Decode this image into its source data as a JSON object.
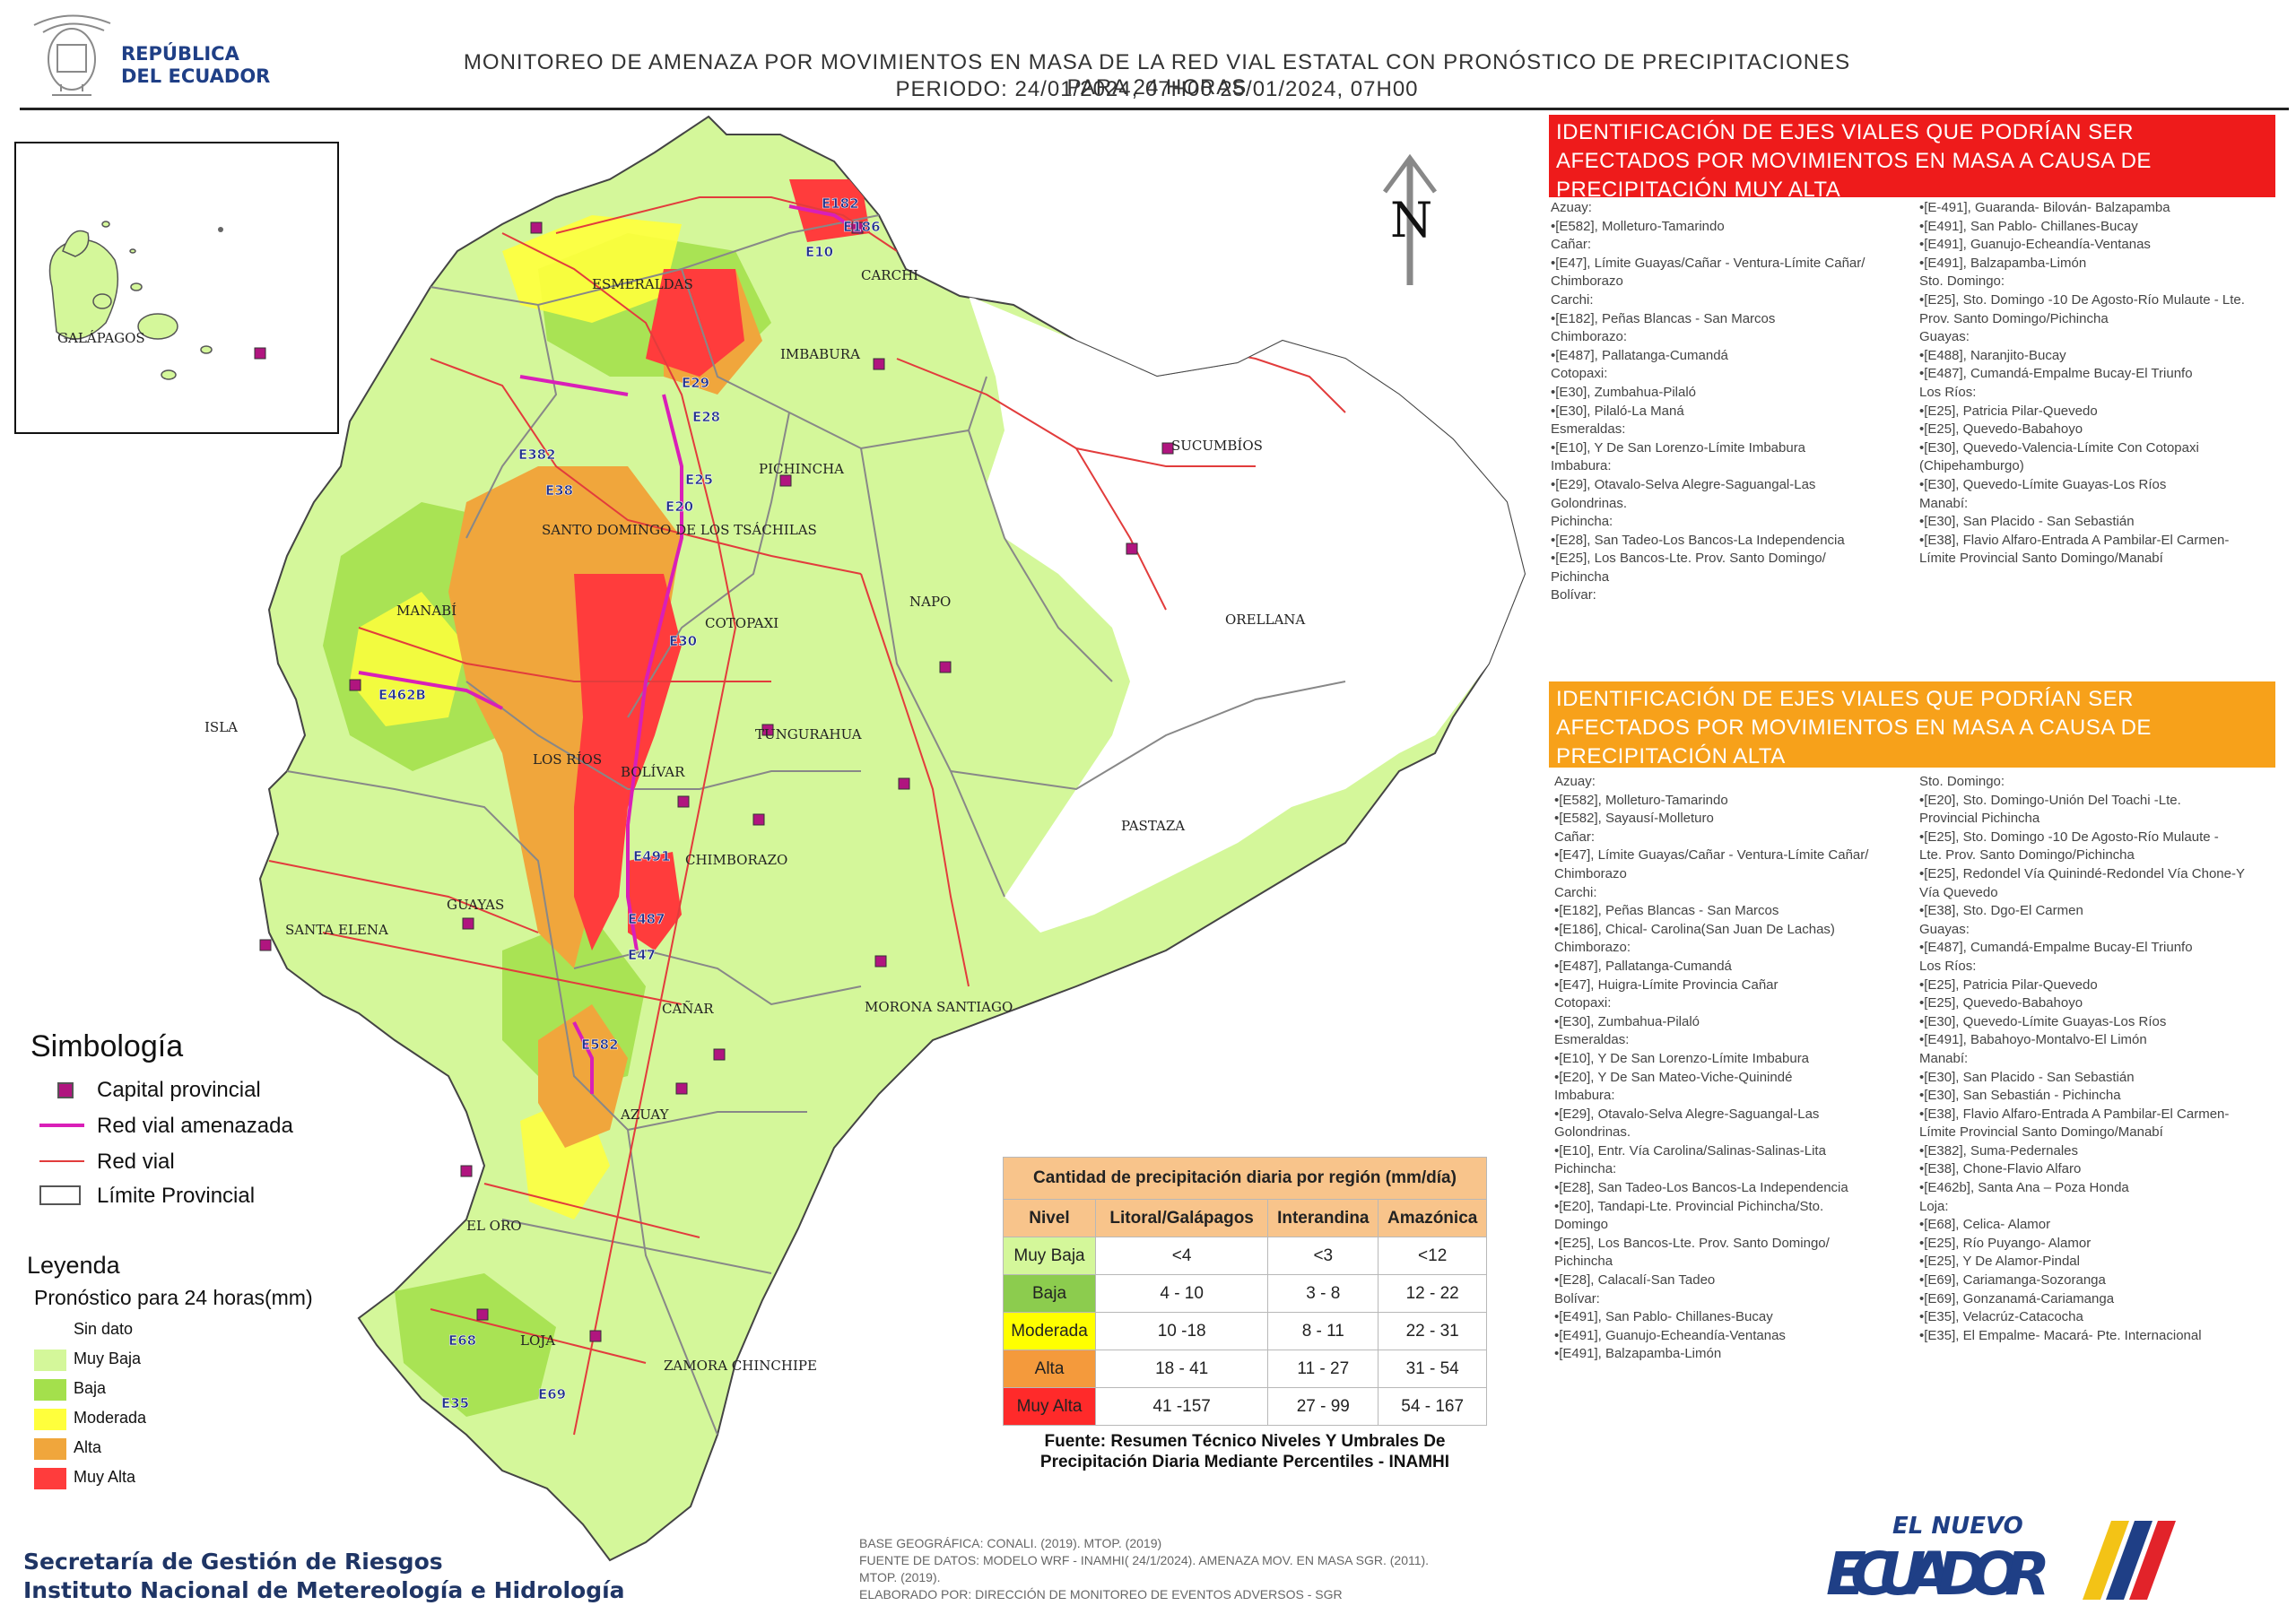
{
  "header": {
    "country_name_line1": "REPÚBLICA",
    "country_name_line2": "DEL ECUADOR",
    "title_line1": "MONITOREO DE AMENAZA POR MOVIMIENTOS EN MASA DE LA RED VIAL  ESTATAL  CON PRONÓSTICO  DE  PRECIPITACIONES PARA 24 HORAS",
    "title_line2": "PERIODO: 24/01/2024, 07H00 25/01/2024, 07H00"
  },
  "map": {
    "north_label": "N",
    "inset_label": "GALÁPAGOS",
    "isla_label": "ISLA",
    "province_labels": [
      "ESMERALDAS",
      "CARCHI",
      "IMBABURA",
      "SUCUMBÍOS",
      "PICHINCHA",
      "SANTO DOMINGO DE LOS TSÁCHILAS",
      "MANABÍ",
      "COTOPAXI",
      "NAPO",
      "ORELLANA",
      "LOS RÍOS",
      "BOLÍVAR",
      "TUNGURAHUA",
      "PASTAZA",
      "CHIMBORAZO",
      "GUAYAS",
      "SANTA ELENA",
      "CAÑAR",
      "MORONA SANTIAGO",
      "AZUAY",
      "EL ORO",
      "LOJA",
      "ZAMORA CHINCHIPE"
    ],
    "road_labels": [
      "E182",
      "E186",
      "E10",
      "E29",
      "E28",
      "E25",
      "E20",
      "E382",
      "E38",
      "E30",
      "E462B",
      "E491",
      "E487",
      "E47",
      "E582",
      "E68",
      "E69",
      "E35"
    ]
  },
  "panel_muy_alta": {
    "heading": "IDENTIFICACIÓN DE EJES VIALES QUE PODRÍAN SER AFECTADOS POR MOVIMIENTOS EN MASA A CAUSA DE PRECIPITACIÓN MUY ALTA",
    "left_column": "Azuay:\n•[E582], Molleturo-Tamarindo\nCañar:\n•[E47], Límite Guayas/Cañar - Ventura-Límite Cañar/\nChimborazo\nCarchi:\n•[E182], Peñas Blancas - San Marcos\nChimborazo:\n•[E487], Pallatanga-Cumandá\nCotopaxi:\n•[E30], Zumbahua-Pilaló\n•[E30], Pilaló-La Maná\nEsmeraldas:\n•[E10], Y De San Lorenzo-Límite Imbabura\nImbabura:\n•[E29], Otavalo-Selva Alegre-Saguangal-Las\nGolondrinas.\nPichincha:\n•[E28], San Tadeo-Los Bancos-La Independencia\n•[E25], Los Bancos-Lte. Prov. Santo Domingo/\nPichincha\nBolívar:",
    "right_column": "•[E-491], Guaranda- Bilován- Balzapamba\n•[E491], San Pablo- Chillanes-Bucay\n•[E491], Guanujo-Echeandía-Ventanas\n•[E491], Balzapamba-Limón\nSto. Domingo:\n•[E25], Sto. Domingo -10 De Agosto-Río Mulaute - Lte.\nProv. Santo Domingo/Pichincha\nGuayas:\n•[E488], Naranjito-Bucay\n•[E487], Cumandá-Empalme Bucay-El Triunfo\nLos Ríos:\n•[E25], Patricia Pilar-Quevedo\n•[E25], Quevedo-Babahoyo\n•[E30], Quevedo-Valencia-Límite Con Cotopaxi\n(Chipehamburgo)\n•[E30], Quevedo-Límite Guayas-Los Ríos\nManabí:\n•[E30], San Placido - San Sebastián\n•[E38], Flavio Alfaro-Entrada A Pambilar-El Carmen-\nLímite Provincial Santo Domingo/Manabí"
  },
  "panel_alta": {
    "heading": "IDENTIFICACIÓN DE EJES VIALES QUE PODRÍAN SER AFECTADOS POR MOVIMIENTOS EN MASA A CAUSA DE PRECIPITACIÓN  ALTA",
    "left_column": "Azuay:\n•[E582], Molleturo-Tamarindo\n•[E582], Sayausí-Molleturo\nCañar:\n•[E47], Límite Guayas/Cañar - Ventura-Límite Cañar/\nChimborazo\nCarchi:\n•[E182], Peñas Blancas - San Marcos\n•[E186], Chical- Carolina(San Juan De Lachas)\nChimborazo:\n•[E487], Pallatanga-Cumandá\n•[E47], Huigra-Límite Provincia Cañar\nCotopaxi:\n•[E30], Zumbahua-Pilaló\nEsmeraldas:\n•[E10], Y De San Lorenzo-Límite Imbabura\n•[E20], Y De San Mateo-Viche-Quinindé\nImbabura:\n•[E29], Otavalo-Selva Alegre-Saguangal-Las\nGolondrinas.\n•[E10], Entr. Vía Carolina/Salinas-Salinas-Lita\nPichincha:\n•[E28], San Tadeo-Los Bancos-La Independencia\n•[E20], Tandapi-Lte. Provincial Pichincha/Sto.\nDomingo\n•[E25], Los Bancos-Lte. Prov. Santo Domingo/\nPichincha\n•[E28], Calacalí-San Tadeo\nBolívar:\n•[E491], San Pablo- Chillanes-Bucay\n•[E491], Guanujo-Echeandía-Ventanas\n•[E491], Balzapamba-Limón",
    "right_column": "Sto. Domingo:\n•[E20], Sto. Domingo-Unión Del Toachi -Lte.\nProvincial Pichincha\n•[E25], Sto. Domingo -10 De Agosto-Río Mulaute -\nLte. Prov. Santo Domingo/Pichincha\n•[E25], Redondel Vía Quinindé-Redondel Vía Chone-Y\nVía Quevedo\n•[E38], Sto. Dgo-El Carmen\nGuayas:\n•[E487], Cumandá-Empalme Bucay-El Triunfo\nLos Ríos:\n•[E25], Patricia Pilar-Quevedo\n•[E25], Quevedo-Babahoyo\n•[E30], Quevedo-Límite Guayas-Los Ríos\n•[E491], Babahoyo-Montalvo-El Limón\nManabí:\n•[E30], San Placido - San Sebastián\n•[E30], San Sebastián - Pichincha\n•[E38], Flavio Alfaro-Entrada A Pambilar-El Carmen-\nLímite Provincial Santo Domingo/Manabí\n•[E382], Suma-Pedernales\n•[E38], Chone-Flavio Alfaro\n•[E462b], Santa Ana – Poza Honda\nLoja:\n•[E68], Celica- Alamor\n•[E25], Río Puyango- Alamor\n•[E25], Y De Alamor-Pindal\n•[E69], Cariamanga-Sozoranga\n•[E69], Gonzanamá-Cariamanga\n•[E35], Velacrúz-Catacocha\n•[E35], El Empalme- Macará- Pte. Internacional"
  },
  "simbologia": {
    "title": "Simbología",
    "items": [
      "Capital provincial",
      "Red vial amenazada",
      "Red vial",
      "Límite Provincial"
    ]
  },
  "leyenda": {
    "title": "Leyenda",
    "subtitle": "Pronóstico para 24 horas(mm)",
    "items": [
      {
        "label": "Sin dato",
        "color": "#ffffff"
      },
      {
        "label": "Muy Baja",
        "color": "#d4f79a"
      },
      {
        "label": "Baja",
        "color": "#a4e04c"
      },
      {
        "label": "Moderada",
        "color": "#ffff3c"
      },
      {
        "label": "Alta",
        "color": "#f0a63c"
      },
      {
        "label": "Muy Alta",
        "color": "#ff3c3c"
      }
    ]
  },
  "precip_table": {
    "title": "Cantidad de precipitación diaria por región (mm/día)",
    "headers": [
      "Nivel",
      "Litoral/Galápagos",
      "Interandina",
      "Amazónica"
    ],
    "rows": [
      {
        "level": "Muy Baja",
        "color": "#d4f79a",
        "values": [
          "<4",
          "<3",
          "<12"
        ]
      },
      {
        "level": "Baja",
        "color": "#8ccc4e",
        "values": [
          "4 - 10",
          "3 - 8",
          "12 - 22"
        ]
      },
      {
        "level": "Moderada",
        "color": "#ffff00",
        "values": [
          "10 -18",
          "8 - 11",
          "22 - 31"
        ]
      },
      {
        "level": "Alta",
        "color": "#f49a3c",
        "values": [
          "18 - 41",
          "11 - 27",
          "31 - 54"
        ]
      },
      {
        "level": "Muy Alta",
        "color": "#ff2a2a",
        "values": [
          "41 -157",
          "27 - 99",
          "54 - 167"
        ]
      }
    ],
    "caption_line1": "Fuente: Resumen Técnico Niveles Y Umbrales De",
    "caption_line2": "Precipitación Diaria Mediante Percentiles - INAMHI"
  },
  "footer": {
    "institution_line1": "Secretaría de Gestión de Riesgos",
    "institution_line2": "Instituto Nacional de Metereología e Hidrología",
    "note_line1": "BASE GEOGRÁFICA: CONALI. (2019). MTOP. (2019)",
    "note_line2": "FUENTE DE DATOS: MODELO WRF - INAMHI( 24/1/2024).  AMENAZA MOV. EN MASA SGR. (2011).",
    "note_line3": "MTOP. (2019).",
    "note_line4": "ELABORADO POR: DIRECCIÓN DE MONITOREO DE EVENTOS ADVERSOS - SGR",
    "brand_top": "EL NUEVO",
    "brand_main": "ECUADOR"
  },
  "colors": {
    "muy_baja": "#d4f79a",
    "baja": "#a4e04c",
    "moderada": "#ffff3c",
    "alta": "#f0a63c",
    "muy_alta": "#ff3c3c",
    "road": "#e23c3c",
    "road_threatened": "#d91fb8",
    "capital": "#b0157f",
    "brand_blue": "#1f3f86"
  }
}
